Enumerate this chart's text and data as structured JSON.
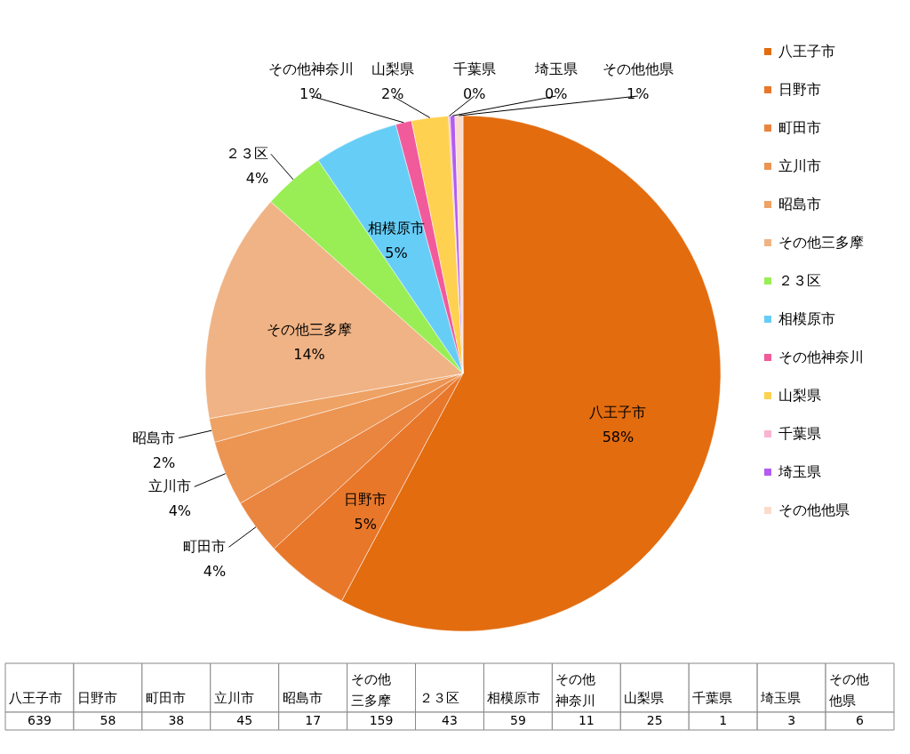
{
  "chart_data": [
    {
      "type": "pie",
      "categories": [
        "八王子市",
        "日野市",
        "町田市",
        "立川市",
        "昭島市",
        "その他三多摩",
        "２３区",
        "相模原市",
        "その他神奈川",
        "山梨県",
        "千葉県",
        "埼玉県",
        "その他他県"
      ],
      "values": [
        57.8,
        5.3,
        3.5,
        4.1,
        1.5,
        14.4,
        3.9,
        5.3,
        1.0,
        2.3,
        0.1,
        0.3,
        0.5
      ],
      "colors": [
        "#e36c0f",
        "#e8772a",
        "#ea853f",
        "#ec9452",
        "#eea264",
        "#f0b385",
        "#99ee55",
        "#66cdf6",
        "#f15a9b",
        "#ffd150",
        "#f9b4d2",
        "#b35cf0",
        "#fbdccc"
      ],
      "value_labels": [
        "58%",
        "5%",
        "4%",
        "4%",
        "2%",
        "14%",
        "4%",
        "5%",
        "1%",
        "2%",
        "0%",
        "0%",
        "1%"
      ],
      "legend": "right"
    },
    {
      "type": "other",
      "categories": [
        "八王子市",
        "日野市",
        "町田市",
        "立川市",
        "昭島市",
        "その他三多摩",
        "２３区",
        "相模原市",
        "その他神奈川",
        "山梨県",
        "千葉県",
        "埼玉県",
        "その他他県"
      ],
      "values": [
        639,
        58,
        38,
        45,
        17,
        159,
        43,
        59,
        11,
        25,
        1,
        3,
        6
      ],
      "data_labels": true
    }
  ]
}
